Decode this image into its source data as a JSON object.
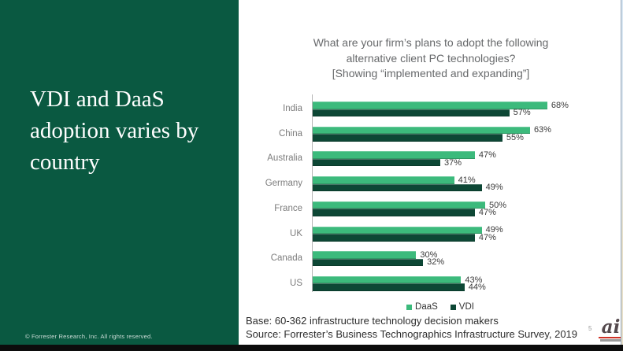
{
  "slide": {
    "left_panel": {
      "title_lines": [
        "VDI and DaaS",
        "adoption varies by",
        "country"
      ],
      "copyright": "© Forrester Research, Inc. All rights reserved.",
      "bg_color": "#0a5941"
    },
    "chart_title_lines": [
      "What are your firm’s plans to adopt the following",
      "alternative client PC technologies?",
      "[Showing “implemented and expanding”]"
    ],
    "footer": {
      "base": "Base: 60-362 infrastructure technology decision makers",
      "source": "Source: Forrester’s Business Technographics Infrastructure Survey, 2019",
      "page_number": "5"
    },
    "logo": {
      "text": "ai"
    }
  },
  "chart_data": {
    "type": "bar",
    "orientation": "horizontal",
    "title": "What are your firm’s plans to adopt the following alternative client PC technologies? [Showing “implemented and expanding”]",
    "categories": [
      "India",
      "China",
      "Australia",
      "Germany",
      "France",
      "UK",
      "Canada",
      "US"
    ],
    "series": [
      {
        "name": "DaaS",
        "color": "#3cba7c",
        "values": [
          68,
          63,
          47,
          41,
          50,
          49,
          30,
          43
        ]
      },
      {
        "name": "VDI",
        "color": "#0d4735",
        "values": [
          57,
          55,
          37,
          49,
          47,
          47,
          32,
          44
        ]
      }
    ],
    "value_suffix": "%",
    "value_labels": true,
    "axis_range_percent": [
      0,
      100
    ],
    "legend_position": "bottom",
    "grid": false
  }
}
